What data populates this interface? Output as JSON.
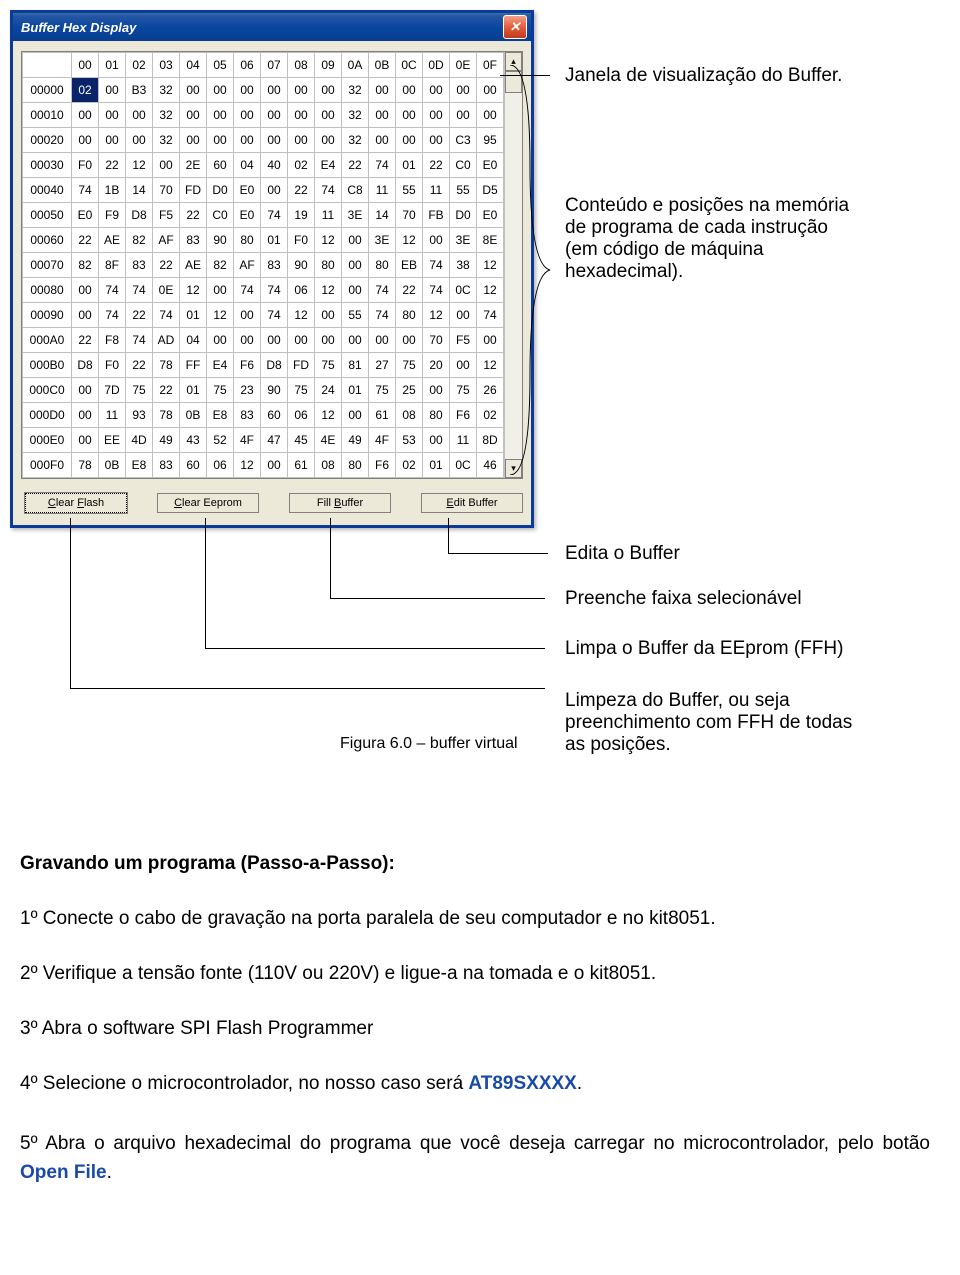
{
  "window": {
    "title": "Buffer Hex Display",
    "close_label": "✕"
  },
  "hex": {
    "header_addr": "",
    "cols": [
      "00",
      "01",
      "02",
      "03",
      "04",
      "05",
      "06",
      "07",
      "08",
      "09",
      "0A",
      "0B",
      "0C",
      "0D",
      "0E",
      "0F"
    ],
    "rows": [
      {
        "addr": "00000",
        "cells": [
          "02",
          "00",
          "B3",
          "32",
          "00",
          "00",
          "00",
          "00",
          "00",
          "00",
          "32",
          "00",
          "00",
          "00",
          "00",
          "00"
        ],
        "sel": 0
      },
      {
        "addr": "00010",
        "cells": [
          "00",
          "00",
          "00",
          "32",
          "00",
          "00",
          "00",
          "00",
          "00",
          "00",
          "32",
          "00",
          "00",
          "00",
          "00",
          "00"
        ]
      },
      {
        "addr": "00020",
        "cells": [
          "00",
          "00",
          "00",
          "32",
          "00",
          "00",
          "00",
          "00",
          "00",
          "00",
          "32",
          "00",
          "00",
          "00",
          "C3",
          "95"
        ]
      },
      {
        "addr": "00030",
        "cells": [
          "F0",
          "22",
          "12",
          "00",
          "2E",
          "60",
          "04",
          "40",
          "02",
          "E4",
          "22",
          "74",
          "01",
          "22",
          "C0",
          "E0"
        ]
      },
      {
        "addr": "00040",
        "cells": [
          "74",
          "1B",
          "14",
          "70",
          "FD",
          "D0",
          "E0",
          "00",
          "22",
          "74",
          "C8",
          "11",
          "55",
          "11",
          "55",
          "D5"
        ]
      },
      {
        "addr": "00050",
        "cells": [
          "E0",
          "F9",
          "D8",
          "F5",
          "22",
          "C0",
          "E0",
          "74",
          "19",
          "11",
          "3E",
          "14",
          "70",
          "FB",
          "D0",
          "E0"
        ]
      },
      {
        "addr": "00060",
        "cells": [
          "22",
          "AE",
          "82",
          "AF",
          "83",
          "90",
          "80",
          "01",
          "F0",
          "12",
          "00",
          "3E",
          "12",
          "00",
          "3E",
          "8E"
        ]
      },
      {
        "addr": "00070",
        "cells": [
          "82",
          "8F",
          "83",
          "22",
          "AE",
          "82",
          "AF",
          "83",
          "90",
          "80",
          "00",
          "80",
          "EB",
          "74",
          "38",
          "12"
        ]
      },
      {
        "addr": "00080",
        "cells": [
          "00",
          "74",
          "74",
          "0E",
          "12",
          "00",
          "74",
          "74",
          "06",
          "12",
          "00",
          "74",
          "22",
          "74",
          "0C",
          "12"
        ]
      },
      {
        "addr": "00090",
        "cells": [
          "00",
          "74",
          "22",
          "74",
          "01",
          "12",
          "00",
          "74",
          "12",
          "00",
          "55",
          "74",
          "80",
          "12",
          "00",
          "74"
        ]
      },
      {
        "addr": "000A0",
        "cells": [
          "22",
          "F8",
          "74",
          "AD",
          "04",
          "00",
          "00",
          "00",
          "00",
          "00",
          "00",
          "00",
          "00",
          "70",
          "F5",
          "00"
        ]
      },
      {
        "addr": "000B0",
        "cells": [
          "D8",
          "F0",
          "22",
          "78",
          "FF",
          "E4",
          "F6",
          "D8",
          "FD",
          "75",
          "81",
          "27",
          "75",
          "20",
          "00",
          "12"
        ]
      },
      {
        "addr": "000C0",
        "cells": [
          "00",
          "7D",
          "75",
          "22",
          "01",
          "75",
          "23",
          "90",
          "75",
          "24",
          "01",
          "75",
          "25",
          "00",
          "75",
          "26"
        ]
      },
      {
        "addr": "000D0",
        "cells": [
          "00",
          "11",
          "93",
          "78",
          "0B",
          "E8",
          "83",
          "60",
          "06",
          "12",
          "00",
          "61",
          "08",
          "80",
          "F6",
          "02"
        ]
      },
      {
        "addr": "000E0",
        "cells": [
          "00",
          "EE",
          "4D",
          "49",
          "43",
          "52",
          "4F",
          "47",
          "45",
          "4E",
          "49",
          "4F",
          "53",
          "00",
          "11",
          "8D"
        ]
      },
      {
        "addr": "000F0",
        "cells": [
          "78",
          "0B",
          "E8",
          "83",
          "60",
          "06",
          "12",
          "00",
          "61",
          "08",
          "80",
          "F6",
          "02",
          "01",
          "0C",
          "46"
        ]
      }
    ]
  },
  "buttons": {
    "clear_flash": "Clear Flash",
    "clear_eeprom": "Clear Eeprom",
    "fill_buffer": "Fill Buffer",
    "edit_buffer": "Edit Buffer",
    "scroll_up": "▴",
    "scroll_down": "▾"
  },
  "annotations": {
    "a1": "Janela de visualização do Buffer.",
    "a2_l1": "Conteúdo e posições na memória",
    "a2_l2": "de programa de cada instrução",
    "a2_l3": "(em código de máquina",
    "a2_l4": "hexadecimal).",
    "a3": "Edita o Buffer",
    "a4": "Preenche faixa selecionável",
    "a5": "Limpa o Buffer da EEprom (FFH)",
    "a6_l1": "Limpeza do Buffer, ou seja",
    "a6_l2": "preenchimento com FFH de todas",
    "a6_l3": "as posições.",
    "caption": "Figura 6.0 – buffer virtual"
  },
  "body": {
    "heading": "Gravando um programa (Passo-a-Passo):",
    "step1": "1º Conecte o cabo de gravação na porta paralela de seu computador e no kit8051.",
    "step2": "2º Verifique a tensão fonte (110V ou 220V) e ligue-a na tomada e o kit8051.",
    "step3": "3º Abra o software SPI Flash Programmer",
    "step4_pre": "4º Selecione o microcontrolador, no nosso caso será ",
    "step4_ref": "AT89SXXXX",
    "step4_post": ".",
    "step5_pre": "5º Abra o arquivo hexadecimal do programa que você deseja carregar no microcontrolador, pelo botão ",
    "step5_ref": "Open File",
    "step5_post": "."
  }
}
